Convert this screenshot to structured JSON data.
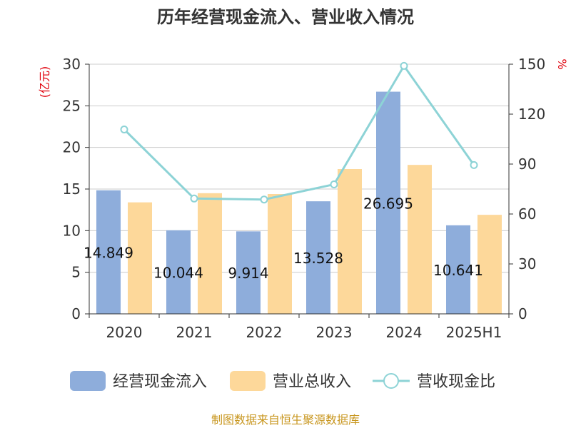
{
  "chart_data": {
    "type": "bar",
    "title": "历年经营现金流入、营业收入情况",
    "categories": [
      "2020",
      "2021",
      "2022",
      "2023",
      "2024",
      "2025H1"
    ],
    "series": [
      {
        "name": "经营现金流入",
        "type": "bar",
        "axis": "left",
        "color": "#8eaddb",
        "values": [
          14.849,
          10.044,
          9.914,
          13.528,
          26.695,
          10.641
        ],
        "labels": [
          "14.849",
          "10.044",
          "9.914",
          "13.528",
          "26.695",
          "10.641"
        ]
      },
      {
        "name": "营业总收入",
        "type": "bar",
        "axis": "left",
        "color": "#fdd89a",
        "values": [
          13.4,
          14.5,
          14.4,
          17.4,
          17.9,
          11.9
        ]
      },
      {
        "name": "营收现金比",
        "type": "line",
        "axis": "right",
        "color": "#8dd3d6",
        "values": [
          110.8,
          69.3,
          68.7,
          77.8,
          149.0,
          89.4
        ]
      }
    ],
    "left_axis": {
      "label": "(亿元)",
      "ylim": [
        0,
        30
      ],
      "ticks": [
        0,
        5,
        10,
        15,
        20,
        25,
        30
      ]
    },
    "right_axis": {
      "label": "%",
      "ylim": [
        0,
        150
      ],
      "ticks": [
        0,
        30,
        60,
        90,
        120,
        150
      ]
    },
    "grid": true,
    "legend_position": "bottom",
    "source": "制图数据来自恒生聚源数据库"
  }
}
